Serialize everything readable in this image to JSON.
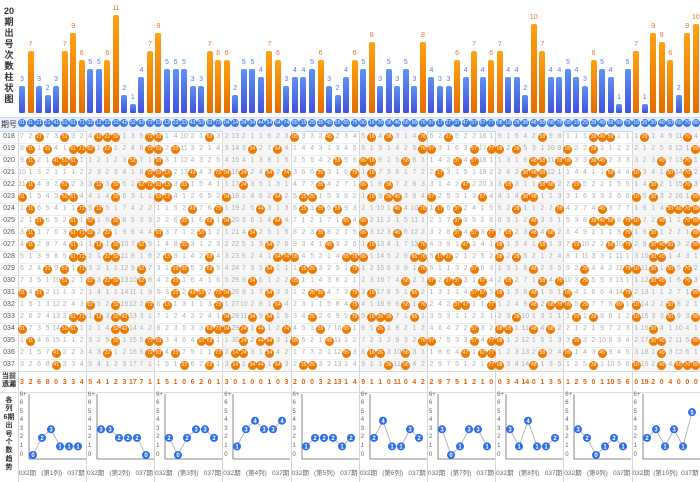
{
  "labels": {
    "bar_chart_title_chars": [
      "20",
      "期",
      "出",
      "号",
      "次",
      "数",
      "柱",
      "状",
      "图"
    ],
    "period_header": "期号",
    "current_omission_lines": [
      "当前",
      "遗漏"
    ],
    "trend_title_chars": [
      "各",
      "列",
      "6期",
      "出",
      "号",
      "个",
      "数",
      "趋",
      "势"
    ]
  },
  "colors": {
    "ball": "#ef7a00",
    "blue_bar": "#4a6ee6",
    "orange_bar": "#f28a00",
    "header_circle": "#3b7ae2",
    "trend_point": "#2a6ee8"
  },
  "chart_data": {
    "type": "bar",
    "title": "20期出号次数柱状图",
    "highlight_threshold": 6,
    "categories": [
      "01",
      "11",
      "21",
      "31",
      "41",
      "51",
      "61",
      "71",
      "02",
      "12",
      "22",
      "32",
      "42",
      "52",
      "62",
      "72",
      "03",
      "13",
      "23",
      "33",
      "43",
      "53",
      "63",
      "73",
      "04",
      "14",
      "24",
      "34",
      "44",
      "54",
      "64",
      "74",
      "05",
      "15",
      "25",
      "35",
      "45",
      "55",
      "65",
      "75",
      "06",
      "16",
      "26",
      "36",
      "46",
      "56",
      "66",
      "76",
      "07",
      "17",
      "27",
      "37",
      "47",
      "57",
      "67",
      "77",
      "08",
      "18",
      "28",
      "38",
      "48",
      "58",
      "68",
      "78",
      "09",
      "19",
      "29",
      "39",
      "49",
      "59",
      "69",
      "79",
      "10",
      "20",
      "30",
      "40",
      "50",
      "60",
      "70",
      "80"
    ],
    "values": [
      3,
      7,
      3,
      2,
      3,
      7,
      9,
      6,
      5,
      5,
      6,
      11,
      2,
      1,
      4,
      7,
      9,
      5,
      5,
      5,
      3,
      3,
      7,
      6,
      6,
      2,
      5,
      5,
      4,
      7,
      6,
      3,
      4,
      4,
      5,
      6,
      3,
      2,
      4,
      6,
      5,
      8,
      3,
      5,
      3,
      5,
      3,
      8,
      4,
      3,
      3,
      6,
      4,
      7,
      4,
      6,
      7,
      4,
      4,
      2,
      10,
      7,
      4,
      4,
      5,
      4,
      3,
      6,
      5,
      4,
      1,
      5,
      7,
      1,
      9,
      8,
      6,
      2,
      9,
      10
    ]
  },
  "grid": {
    "first_row_omission": [
      7,
      2,
      0,
      7,
      3,
      0,
      3,
      2,
      4,
      0,
      0,
      0,
      1,
      3,
      5,
      0,
      0,
      1,
      4,
      10,
      2,
      1,
      0,
      3,
      2,
      13,
      2,
      1,
      1,
      6,
      2,
      3,
      0,
      3,
      3,
      2,
      0,
      2,
      3,
      4,
      5,
      0,
      4,
      0,
      3,
      1,
      4,
      0,
      6,
      2,
      0,
      5,
      2,
      2,
      16,
      1,
      9,
      1,
      5,
      4,
      2,
      0,
      9,
      8,
      1,
      1,
      1,
      0,
      0,
      0,
      1,
      1,
      1,
      0,
      1,
      4,
      5,
      11,
      0,
      4
    ],
    "rows": [
      {
        "period": "018",
        "hits": [
          "21",
          "51",
          "12",
          "22",
          "32",
          "72",
          "03",
          "63",
          "05",
          "45",
          "16",
          "36",
          "76",
          "27",
          "58",
          "39",
          "49",
          "59",
          "20",
          "70"
        ]
      },
      {
        "period": "019",
        "hits": [
          "11",
          "31",
          "61",
          "71",
          "02",
          "22",
          "72",
          "03",
          "23",
          "34",
          "64",
          "76",
          "07",
          "57",
          "77",
          "08",
          "28",
          "39",
          "09",
          "80"
        ]
      },
      {
        "period": "020",
        "hits": [
          "11",
          "41",
          "51",
          "61",
          "52",
          "03",
          "55",
          "06",
          "16",
          "56",
          "37",
          "57",
          "48",
          "58",
          "78",
          "09",
          "39",
          "49",
          "40",
          "70"
        ]
      },
      {
        "period": "021",
        "hits": [
          "72",
          "03",
          "13",
          "43",
          "73",
          "04",
          "24",
          "54",
          "74",
          "35",
          "75",
          "16",
          "17",
          "38",
          "48",
          "58",
          "59",
          "10",
          "50",
          "70"
        ]
      },
      {
        "period": "022",
        "hits": [
          "11",
          "51",
          "12",
          "32",
          "62",
          "72",
          "03",
          "13",
          "33",
          "24",
          "35",
          "06",
          "36",
          "47",
          "18",
          "58",
          "68",
          "19",
          "30",
          "70"
        ]
      },
      {
        "period": "023",
        "hits": [
          "01",
          "51",
          "61",
          "32",
          "03",
          "13",
          "04",
          "64",
          "15",
          "25",
          "16",
          "36",
          "46",
          "07",
          "67",
          "38",
          "48",
          "10",
          "30",
          "80"
        ]
      },
      {
        "period": "024",
        "hits": [
          "11",
          "71",
          "12",
          "43",
          "73",
          "44",
          "15",
          "35",
          "55",
          "46",
          "76",
          "17",
          "37",
          "28",
          "78",
          "49",
          "50",
          "60",
          "70",
          "80"
        ]
      },
      {
        "period": "025",
        "hits": [
          "21",
          "61",
          "02",
          "32",
          "33",
          "63",
          "04",
          "64",
          "65",
          "06",
          "37",
          "48",
          "39",
          "49",
          "59",
          "79",
          "10",
          "40",
          "70",
          "80"
        ]
      },
      {
        "period": "026",
        "hits": [
          "11",
          "61",
          "71",
          "02",
          "22",
          "03",
          "53",
          "34",
          "35",
          "06",
          "46",
          "37",
          "57",
          "77",
          "18",
          "48",
          "68",
          "79",
          "30",
          "80"
        ]
      },
      {
        "period": "027",
        "hits": [
          "11",
          "61",
          "12",
          "32",
          "62",
          "33",
          "54",
          "45",
          "16",
          "76",
          "47",
          "08",
          "58",
          "19",
          "59",
          "79",
          "30",
          "40",
          "50",
          "80"
        ]
      },
      {
        "period": "028",
        "hits": [
          "61",
          "71",
          "22",
          "32",
          "13",
          "63",
          "64",
          "74",
          "05",
          "65",
          "75",
          "06",
          "66",
          "76",
          "17",
          "27",
          "08",
          "28",
          "30",
          "40"
        ]
      },
      {
        "period": "029",
        "hits": [
          "31",
          "51",
          "71",
          "62",
          "23",
          "33",
          "63",
          "54",
          "15",
          "25",
          "75",
          "76",
          "57",
          "48",
          "29",
          "79",
          "10",
          "30",
          "50",
          "70"
        ]
      },
      {
        "period": "030",
        "hits": [
          "51",
          "02",
          "22",
          "32",
          "62",
          "23",
          "34",
          "05",
          "56",
          "07",
          "27",
          "37",
          "67",
          "18",
          "58",
          "78",
          "29",
          "30",
          "40",
          "70"
        ]
      },
      {
        "period": "031",
        "hits": [
          "01",
          "21",
          "23",
          "43",
          "53",
          "73",
          "04",
          "54",
          "25",
          "35",
          "75",
          "16",
          "66",
          "57",
          "67",
          "08",
          "48",
          "09",
          "79",
          "80"
        ]
      },
      {
        "period": "032",
        "hits": [
          "02",
          "32",
          "72",
          "13",
          "73",
          "64",
          "75",
          "56",
          "76",
          "37",
          "47",
          "77",
          "48",
          "68",
          "78",
          "09",
          "29",
          "69",
          "10",
          "50"
        ]
      },
      {
        "period": "033",
        "hits": [
          "61",
          "71",
          "12",
          "32",
          "42",
          "04",
          "34",
          "54",
          "25",
          "75",
          "16",
          "26",
          "36",
          "66",
          "28",
          "19",
          "39",
          "10",
          "50",
          "80"
        ]
      },
      {
        "period": "034",
        "hits": [
          "01",
          "51",
          "61",
          "32",
          "42",
          "63",
          "73",
          "04",
          "24",
          "44",
          "74",
          "35",
          "65",
          "26",
          "57",
          "08",
          "18",
          "48",
          "68",
          "30"
        ]
      },
      {
        "period": "035",
        "hits": [
          "11",
          "32",
          "72",
          "03",
          "53",
          "63",
          "24",
          "44",
          "54",
          "05",
          "45",
          "76",
          "07",
          "57",
          "77",
          "08",
          "19",
          "30",
          "40",
          "80"
        ]
      },
      {
        "period": "036",
        "hits": [
          "41",
          "22",
          "72",
          "03",
          "23",
          "73",
          "14",
          "24",
          "54",
          "65",
          "16",
          "26",
          "56",
          "47",
          "67",
          "77",
          "58",
          "09",
          "49",
          "40"
        ]
      },
      {
        "period": "037",
        "hits": [
          "41",
          "33",
          "63",
          "14",
          "34",
          "44",
          "64",
          "15",
          "25",
          "36",
          "56",
          "77",
          "08",
          "48",
          "39",
          "10",
          "40",
          "60",
          "70",
          "80"
        ]
      }
    ]
  },
  "current_omission": [
    3,
    2,
    6,
    8,
    0,
    3,
    3,
    4,
    5,
    4,
    1,
    2,
    3,
    17,
    7,
    1,
    1,
    5,
    1,
    0,
    6,
    2,
    0,
    1,
    3,
    0,
    1,
    0,
    0,
    1,
    0,
    3,
    2,
    0,
    0,
    3,
    2,
    13,
    1,
    4,
    9,
    1,
    1,
    0,
    11,
    0,
    4,
    2,
    2,
    9,
    7,
    5,
    1,
    2,
    1,
    0,
    0,
    3,
    4,
    14,
    0,
    1,
    3,
    5,
    1,
    2,
    5,
    0,
    1,
    10,
    5,
    6,
    0,
    19,
    2,
    0,
    4,
    0,
    0,
    0
  ],
  "trend": {
    "y_ticks": [
      "0",
      "1",
      "2",
      "3",
      "4",
      "5",
      "6",
      "6+"
    ],
    "start_label": "032期",
    "end_label": "037期",
    "charts": [
      {
        "label": "(第1列)",
        "values": [
          0,
          2,
          3,
          1,
          1,
          1
        ]
      },
      {
        "label": "(第2列)",
        "values": [
          3,
          3,
          2,
          2,
          2,
          0
        ]
      },
      {
        "label": "(第3列)",
        "values": [
          2,
          0,
          2,
          3,
          3,
          2
        ]
      },
      {
        "label": "(第4列)",
        "values": [
          1,
          3,
          4,
          3,
          3,
          4
        ]
      },
      {
        "label": "(第5列)",
        "values": [
          1,
          2,
          2,
          2,
          1,
          2
        ]
      },
      {
        "label": "(第6列)",
        "values": [
          2,
          4,
          1,
          1,
          3,
          2
        ]
      },
      {
        "label": "(第7列)",
        "values": [
          3,
          0,
          1,
          3,
          3,
          1
        ]
      },
      {
        "label": "(第8列)",
        "values": [
          3,
          1,
          4,
          1,
          1,
          2
        ]
      },
      {
        "label": "(第9列)",
        "values": [
          3,
          2,
          0,
          1,
          2,
          1
        ]
      },
      {
        "label": "(第10列)",
        "values": [
          2,
          3,
          1,
          3,
          1,
          5
        ]
      }
    ]
  }
}
